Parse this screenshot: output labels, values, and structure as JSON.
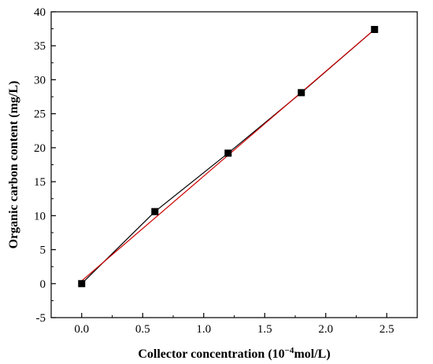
{
  "chart_data": {
    "type": "scatter",
    "xlabel": "Collector concentration (10",
    "xlabel_exp": "−4",
    "xlabel_unit": "mol/L)",
    "ylabel": "Organic carbon content (mg/L)",
    "xlim": [
      -0.25,
      2.75
    ],
    "ylim": [
      -5,
      40
    ],
    "xticks": [
      0.0,
      0.5,
      1.0,
      1.5,
      2.0,
      2.5
    ],
    "xtick_labels": [
      "0.0",
      "0.5",
      "1.0",
      "1.5",
      "2.0",
      "2.5"
    ],
    "yticks": [
      -5,
      0,
      5,
      10,
      15,
      20,
      25,
      30,
      35,
      40
    ],
    "ytick_labels": [
      "-5",
      "0",
      "5",
      "10",
      "15",
      "20",
      "25",
      "30",
      "35",
      "40"
    ],
    "grid": false,
    "series": [
      {
        "x": [
          0.0,
          0.6,
          1.2,
          1.8,
          2.4
        ],
        "y": [
          0.0,
          10.6,
          19.2,
          28.1,
          37.4
        ],
        "color": "#000000",
        "marker": "square",
        "connect": true
      }
    ],
    "fit_line": {
      "x": [
        0.0,
        2.4
      ],
      "y": [
        0.4,
        37.4
      ],
      "color": "#cc0000"
    }
  }
}
